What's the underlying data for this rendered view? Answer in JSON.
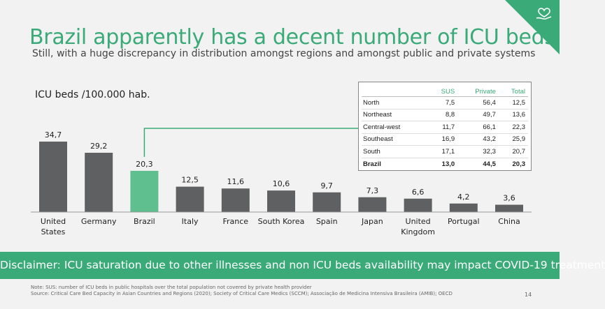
{
  "slide": {
    "title": "Brazil apparently has a decent number of ICU beds",
    "subtitle": "Still, with a huge discrepancy in distribution amongst regions and amongst public and private systems",
    "banner": "Disclaimer: ICU saturation due to other illnesses and non ICU beds availability may impact COVID-19 treatment",
    "note_line1": "Note: SUS: number of ICU beds in public hospitals over the total population not covered by private health provider",
    "note_line2": "Source: Critical Care Bed Capacity in Asian Countries and Regions (2020); Society of Critical Care Medics (SCCM); Associação de Medicina Intensiva Brasileira (AMIB); OECD",
    "page_number": "14",
    "logo_icon": "heart-hand-icon"
  },
  "colors": {
    "accent": "#3aaa79",
    "bar": "#5f6062",
    "highlight_bar": "#5fbf8f",
    "background": "#f2f2f2"
  },
  "chart_data": {
    "type": "bar",
    "ylabel": "ICU beds /100.000 hab.",
    "categories": [
      "United States",
      "Germany",
      "Brazil",
      "Italy",
      "France",
      "South Korea",
      "Spain",
      "Japan",
      "United Kingdom",
      "Portugal",
      "China"
    ],
    "category_lines": [
      [
        "United",
        "States"
      ],
      [
        "Germany"
      ],
      [
        "Brazil"
      ],
      [
        "Italy"
      ],
      [
        "France"
      ],
      [
        "South Korea"
      ],
      [
        "Spain"
      ],
      [
        "Japan"
      ],
      [
        "United",
        "Kingdom"
      ],
      [
        "Portugal"
      ],
      [
        "China"
      ]
    ],
    "values": [
      34.7,
      29.2,
      20.3,
      12.5,
      11.6,
      10.6,
      9.7,
      7.3,
      6.6,
      4.2,
      3.6
    ],
    "value_labels": [
      "34,7",
      "29,2",
      "20,3",
      "12,5",
      "11,6",
      "10,6",
      "9,7",
      "7,3",
      "6,6",
      "4,2",
      "3,6"
    ],
    "highlight": "Brazil",
    "ylim": [
      0,
      40
    ],
    "grid": false
  },
  "regional_table": {
    "headers": [
      "",
      "SUS",
      "Private",
      "Total"
    ],
    "rows": [
      [
        "North",
        "7,5",
        "56,4",
        "12,5"
      ],
      [
        "Northeast",
        "8,8",
        "49,7",
        "13,6"
      ],
      [
        "Central-west",
        "11,7",
        "66,1",
        "22,3"
      ],
      [
        "Southeast",
        "16,9",
        "43,2",
        "25,9"
      ],
      [
        "South",
        "17,1",
        "32,3",
        "20,7"
      ]
    ],
    "total": [
      "Brazil",
      "13,0",
      "44,5",
      "20,3"
    ]
  }
}
